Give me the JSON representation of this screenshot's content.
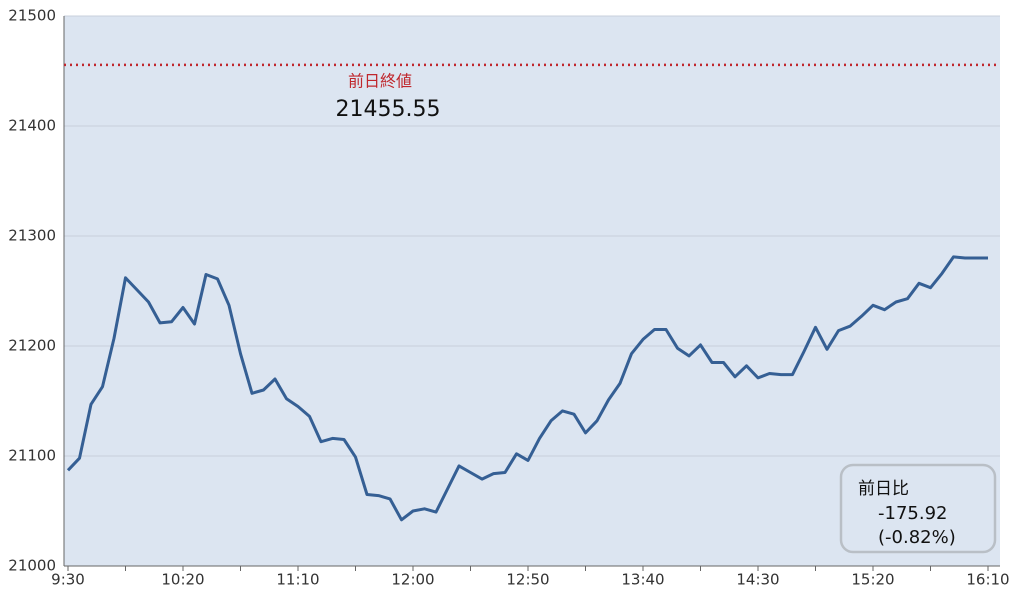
{
  "chart_data": {
    "type": "line",
    "categories": [
      "9:30",
      null,
      null,
      null,
      null,
      null,
      null,
      null,
      null,
      null,
      "10:20",
      null,
      null,
      null,
      null,
      null,
      null,
      null,
      null,
      null,
      "11:10",
      null,
      null,
      null,
      null,
      null,
      null,
      null,
      null,
      null,
      "12:00",
      null,
      null,
      null,
      null,
      null,
      null,
      null,
      null,
      null,
      "12:50",
      null,
      null,
      null,
      null,
      null,
      null,
      null,
      null,
      null,
      "13:40",
      null,
      null,
      null,
      null,
      null,
      null,
      null,
      null,
      null,
      "14:30",
      null,
      null,
      null,
      null,
      null,
      null,
      null,
      null,
      null,
      "15:20",
      null,
      null,
      null,
      null,
      null,
      null,
      null,
      null,
      null,
      "16:10"
    ],
    "series": [
      {
        "color": "#355f94",
        "values": [
          21087,
          21098,
          21147,
          21163,
          21207,
          21262,
          21251,
          21240,
          21221,
          21222,
          21235,
          21220,
          21265,
          21261,
          21237,
          21193,
          21157,
          21160,
          21170,
          21152,
          21145,
          21136,
          21113,
          21116,
          21115,
          21099,
          21065,
          21064,
          21061,
          21042,
          21050,
          21052,
          21049,
          21070,
          21091,
          21085,
          21079,
          21084,
          21085,
          21102,
          21096,
          21116,
          21132,
          21141,
          21138,
          21121,
          21132,
          21151,
          21166,
          21193,
          21206,
          21215,
          21215,
          21198,
          21191,
          21201,
          21185,
          21185,
          21172,
          21182,
          21171,
          21175,
          21174,
          21174,
          21195,
          21217,
          21197,
          21214,
          21218,
          21227,
          21237,
          21233,
          21240,
          21243,
          21257,
          21253,
          21266,
          21281,
          21280,
          21280,
          21280
        ]
      }
    ],
    "ylim": [
      21000,
      21500
    ],
    "yticks": [
      21000,
      21100,
      21200,
      21300,
      21400,
      21500
    ],
    "grid": true,
    "reference": {
      "label": "前日終値",
      "value": 21455.55,
      "color": "#c0272d"
    },
    "change_box": {
      "label": "前日比",
      "value": -175.92,
      "percent": "(-0.82%)"
    }
  }
}
